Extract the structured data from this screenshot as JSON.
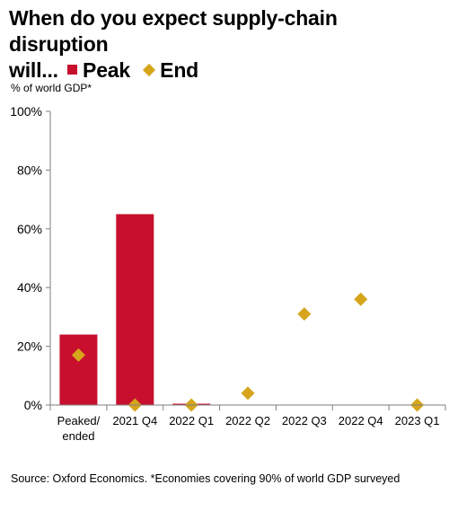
{
  "title": {
    "line1": "When do you expect supply-chain disruption",
    "line2_prefix": "will...",
    "legend_peak": "Peak",
    "legend_end": "End"
  },
  "unit_label": "% of world GDP*",
  "source": "Source: Oxford Economics. *Economies covering 90% of world GDP surveyed",
  "colors": {
    "peak": "#c8102e",
    "end": "#d6a51c"
  },
  "chart_data": {
    "type": "bar",
    "categories": [
      [
        "Peaked/",
        "ended"
      ],
      [
        "2021 Q4"
      ],
      [
        "2022 Q1"
      ],
      [
        "2022 Q2"
      ],
      [
        "2022 Q3"
      ],
      [
        "2022 Q4"
      ],
      [
        "2023 Q1"
      ]
    ],
    "series": [
      {
        "name": "Peak",
        "mark": "bar",
        "values": [
          24,
          65,
          0.3,
          0,
          0,
          0,
          0
        ]
      },
      {
        "name": "End",
        "mark": "diamond",
        "values": [
          17,
          0,
          0,
          4,
          31,
          36,
          0
        ]
      }
    ],
    "ylim": [
      0,
      100
    ],
    "yticks": [
      0,
      20,
      40,
      60,
      80,
      100
    ],
    "ytick_labels": [
      "0%",
      "20%",
      "40%",
      "60%",
      "80%",
      "100%"
    ],
    "grid": false,
    "legend": "in title"
  }
}
